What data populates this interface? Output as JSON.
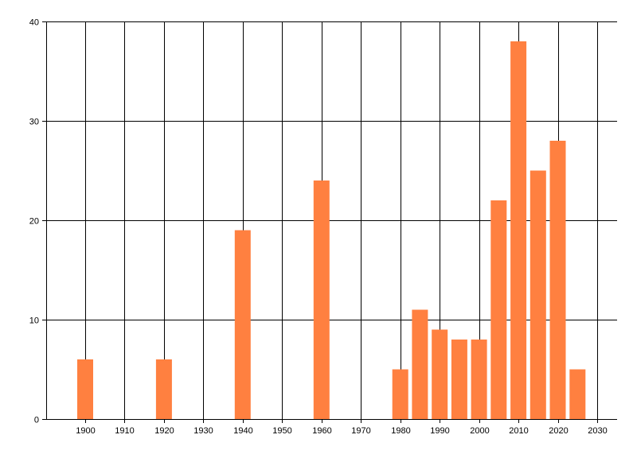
{
  "chart_data": {
    "type": "bar",
    "title": "",
    "xlabel": "",
    "ylabel": "",
    "x": [
      1900,
      1920,
      1940,
      1960,
      1980,
      1985,
      1990,
      1995,
      2000,
      2005,
      2010,
      2015,
      2020,
      2025
    ],
    "values": [
      6,
      6,
      19,
      24,
      5,
      11,
      9,
      8,
      8,
      22,
      38,
      25,
      28,
      5
    ],
    "xlim": [
      1890,
      2030
    ],
    "ylim": [
      0,
      40
    ],
    "x_ticks": [
      1900,
      1910,
      1920,
      1930,
      1940,
      1950,
      1960,
      1970,
      1980,
      1990,
      2000,
      2010,
      2020,
      2030
    ],
    "y_ticks": [
      0,
      10,
      20,
      30,
      40
    ],
    "grid": true,
    "bar_color": "#ff8040",
    "grid_color": "#000000"
  }
}
